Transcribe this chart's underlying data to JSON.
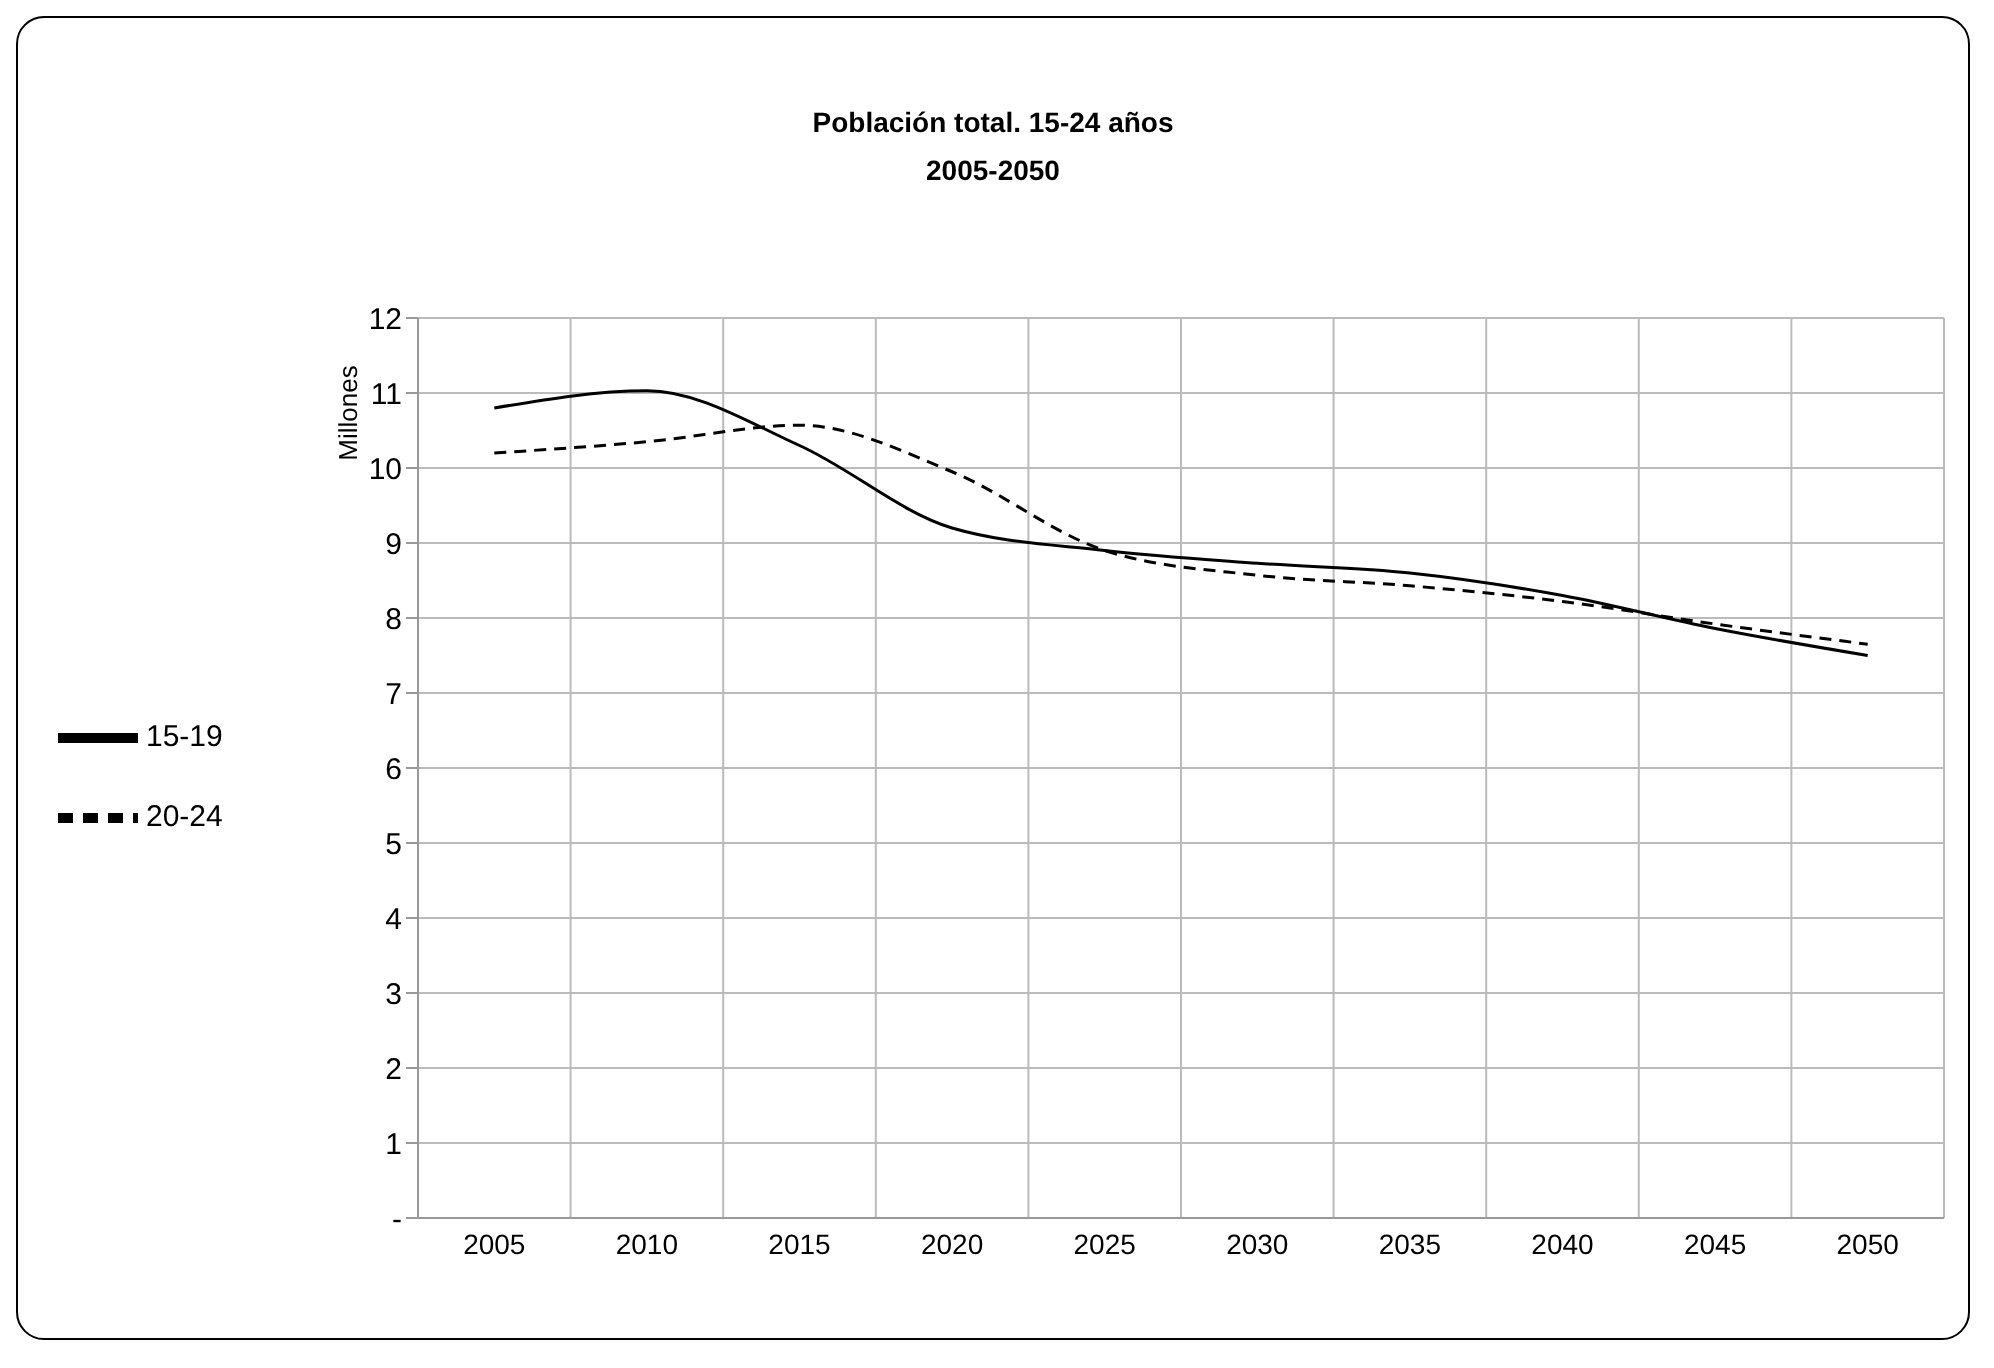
{
  "chart_data": {
    "type": "line",
    "title": "Población total. 15-24 años",
    "subtitle": "2005-2050",
    "ylabel": "Millones",
    "categories": [
      "2005",
      "2010",
      "2015",
      "2020",
      "2025",
      "2030",
      "2035",
      "2040",
      "2045",
      "2050"
    ],
    "series": [
      {
        "name": "15-19",
        "color": "#000000",
        "line_style": "solid",
        "values": [
          10.8,
          11.03,
          10.3,
          9.2,
          8.9,
          8.73,
          8.6,
          8.3,
          7.86,
          7.5
        ]
      },
      {
        "name": "20-24",
        "color": "#000000",
        "line_style": "dashed",
        "values": [
          10.2,
          10.35,
          10.57,
          9.95,
          8.9,
          8.57,
          8.43,
          8.22,
          7.92,
          7.65
        ]
      }
    ],
    "ylim": [
      0,
      12
    ],
    "yticks": [
      {
        "value": 0,
        "label": "-"
      },
      1,
      2,
      3,
      4,
      5,
      6,
      7,
      8,
      9,
      10,
      11,
      12
    ],
    "grid": true,
    "legend": "left",
    "marker": "none"
  }
}
